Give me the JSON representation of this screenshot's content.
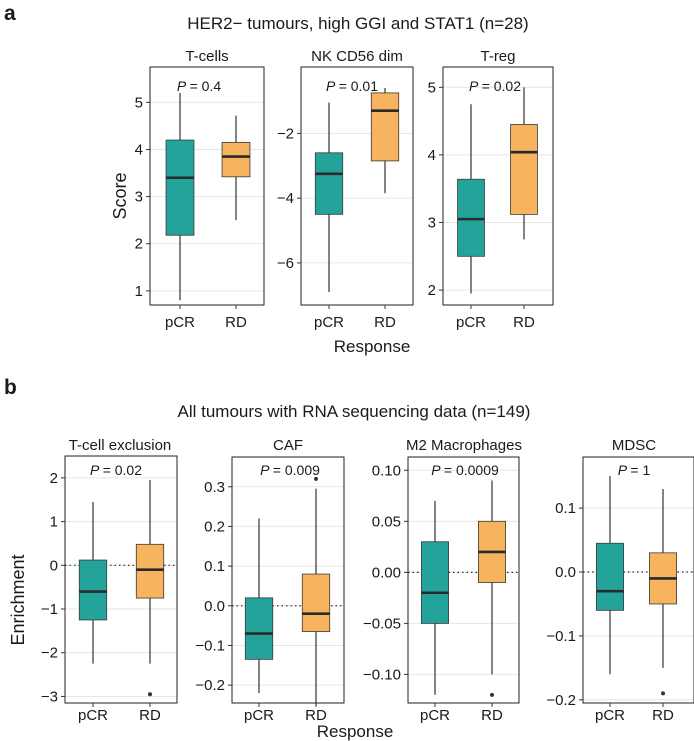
{
  "colors": {
    "pCR": "#24a39a",
    "RD": "#f7b35d",
    "median": "#2a2a2a",
    "frame": "#222222",
    "grid": "#e6e6e6",
    "whisker": "#333333"
  },
  "panel_a": {
    "letter": "a",
    "title": "HER2− tumours, high GGI and STAT1 (n=28)",
    "ylabel": "Score",
    "xlabel": "Response"
  },
  "panel_b": {
    "letter": "b",
    "title": "All tumours with RNA sequencing data (n=149)",
    "ylabel": "Enrichment",
    "xlabel": "Response"
  },
  "chart_data": [
    {
      "type": "box",
      "panel": "a",
      "title": "T-cells",
      "p_label": "P",
      "p_value": "= 0.4",
      "categories": [
        "pCR",
        "RD"
      ],
      "ylim": [
        0.7,
        5.75
      ],
      "yticks": [
        1,
        2,
        3,
        4,
        5
      ],
      "tick_labels": [
        "1",
        "2",
        "3",
        "4",
        "5"
      ],
      "zero_line": false,
      "boxes": [
        {
          "name": "pCR",
          "whisker_low": 0.8,
          "q1": 2.18,
          "median": 3.4,
          "q3": 4.2,
          "whisker_high": 5.2,
          "outliers": []
        },
        {
          "name": "RD",
          "whisker_low": 2.5,
          "q1": 3.42,
          "median": 3.85,
          "q3": 4.15,
          "whisker_high": 4.72,
          "outliers": []
        }
      ]
    },
    {
      "type": "box",
      "panel": "a",
      "title": "NK CD56 dim",
      "p_label": "P",
      "p_value": "= 0.01",
      "categories": [
        "pCR",
        "RD"
      ],
      "ylim": [
        -7.3,
        0.05
      ],
      "yticks": [
        -6,
        -4,
        -2
      ],
      "tick_labels": [
        "−6",
        "−4",
        "−2"
      ],
      "zero_line": false,
      "boxes": [
        {
          "name": "pCR",
          "whisker_low": -6.9,
          "q1": -4.5,
          "median": -3.25,
          "q3": -2.6,
          "whisker_high": -1.05,
          "outliers": []
        },
        {
          "name": "RD",
          "whisker_low": -3.85,
          "q1": -2.85,
          "median": -1.3,
          "q3": -0.75,
          "whisker_high": -0.6,
          "outliers": []
        }
      ]
    },
    {
      "type": "box",
      "panel": "a",
      "title": "T-reg",
      "p_label": "P",
      "p_value": "= 0.02",
      "categories": [
        "pCR",
        "RD"
      ],
      "ylim": [
        1.78,
        5.3
      ],
      "yticks": [
        2,
        3,
        4,
        5
      ],
      "tick_labels": [
        "2",
        "3",
        "4",
        "5"
      ],
      "zero_line": false,
      "boxes": [
        {
          "name": "pCR",
          "whisker_low": 1.95,
          "q1": 2.5,
          "median": 3.05,
          "q3": 3.64,
          "whisker_high": 4.75,
          "outliers": []
        },
        {
          "name": "RD",
          "whisker_low": 2.75,
          "q1": 3.12,
          "median": 4.04,
          "q3": 4.45,
          "whisker_high": 5.0,
          "outliers": []
        }
      ]
    },
    {
      "type": "box",
      "panel": "b",
      "title": "T-cell exclusion",
      "p_label": "P",
      "p_value": "= 0.02",
      "categories": [
        "pCR",
        "RD"
      ],
      "ylim": [
        -3.15,
        2.5
      ],
      "yticks": [
        -3,
        -2,
        -1,
        0,
        1,
        2
      ],
      "tick_labels": [
        "−3",
        "−2",
        "−1",
        "0",
        "1",
        "2"
      ],
      "zero_line": true,
      "boxes": [
        {
          "name": "pCR",
          "whisker_low": -2.25,
          "q1": -1.25,
          "median": -0.6,
          "q3": 0.12,
          "whisker_high": 1.45,
          "outliers": []
        },
        {
          "name": "RD",
          "whisker_low": -2.25,
          "q1": -0.75,
          "median": -0.1,
          "q3": 0.48,
          "whisker_high": 1.95,
          "outliers": [
            -2.95
          ]
        }
      ]
    },
    {
      "type": "box",
      "panel": "b",
      "title": "CAF",
      "p_label": "P",
      "p_value": "= 0.009",
      "categories": [
        "pCR",
        "RD"
      ],
      "ylim": [
        -0.245,
        0.375
      ],
      "yticks": [
        -0.2,
        -0.1,
        0.0,
        0.1,
        0.2,
        0.3
      ],
      "tick_labels": [
        "−0.2",
        "−0.1",
        "0.0",
        "0.1",
        "0.2",
        "0.3"
      ],
      "zero_line": true,
      "boxes": [
        {
          "name": "pCR",
          "whisker_low": -0.22,
          "q1": -0.135,
          "median": -0.07,
          "q3": 0.02,
          "whisker_high": 0.22,
          "outliers": []
        },
        {
          "name": "RD",
          "whisker_low": -0.25,
          "q1": -0.065,
          "median": -0.02,
          "q3": 0.08,
          "whisker_high": 0.295,
          "outliers": [
            0.32
          ]
        }
      ]
    },
    {
      "type": "box",
      "panel": "b",
      "title": "M2 Macrophages",
      "p_label": "P",
      "p_value": "= 0.0009",
      "categories": [
        "pCR",
        "RD"
      ],
      "ylim": [
        -0.128,
        0.113
      ],
      "yticks": [
        -0.1,
        -0.05,
        0.0,
        0.05,
        0.1
      ],
      "tick_labels": [
        "−0.10",
        "−0.05",
        "0.00",
        "0.05",
        "0.10"
      ],
      "zero_line": true,
      "boxes": [
        {
          "name": "pCR",
          "whisker_low": -0.12,
          "q1": -0.05,
          "median": -0.02,
          "q3": 0.03,
          "whisker_high": 0.07,
          "outliers": []
        },
        {
          "name": "RD",
          "whisker_low": -0.1,
          "q1": -0.01,
          "median": 0.02,
          "q3": 0.05,
          "whisker_high": 0.09,
          "outliers": [
            -0.12
          ]
        }
      ]
    },
    {
      "type": "box",
      "panel": "b",
      "title": "MDSC",
      "p_label": "P",
      "p_value": "= 1",
      "categories": [
        "pCR",
        "RD"
      ],
      "ylim": [
        -0.205,
        0.18
      ],
      "yticks": [
        -0.2,
        -0.1,
        0.0,
        0.1
      ],
      "tick_labels": [
        "−0.2",
        "−0.1",
        "0.0",
        "0.1"
      ],
      "zero_line": true,
      "boxes": [
        {
          "name": "pCR",
          "whisker_low": -0.16,
          "q1": -0.06,
          "median": -0.03,
          "q3": 0.045,
          "whisker_high": 0.15,
          "outliers": []
        },
        {
          "name": "RD",
          "whisker_low": -0.15,
          "q1": -0.05,
          "median": -0.01,
          "q3": 0.03,
          "whisker_high": 0.13,
          "outliers": [
            -0.19
          ]
        }
      ]
    }
  ]
}
